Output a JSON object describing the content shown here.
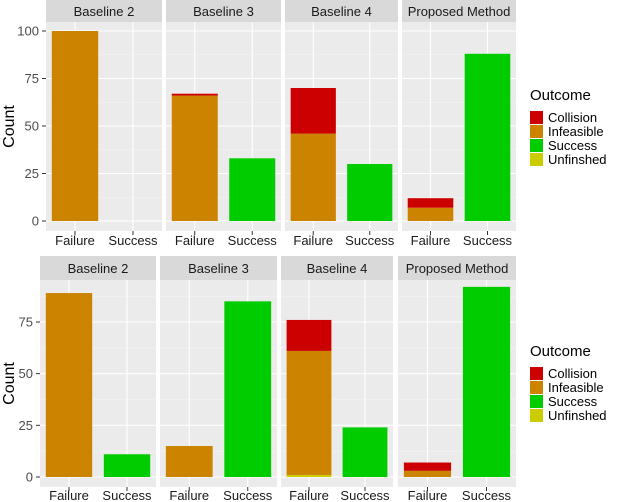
{
  "chart_data": [
    {
      "type": "bar",
      "stacked": true,
      "facet_by": "method",
      "facets": [
        "Baseline 2",
        "Baseline 3",
        "Baseline 4",
        "Proposed Method"
      ],
      "categories": [
        "Failure",
        "Success"
      ],
      "ylabel": "Count",
      "ylim": [
        0,
        105
      ],
      "yticks": [
        0,
        25,
        50,
        75,
        100
      ],
      "legend": {
        "title": "Outcome",
        "position": "right"
      },
      "series": [
        {
          "name": "Collision",
          "color": "#CC0000",
          "values": [
            [
              0,
              0
            ],
            [
              1,
              0
            ],
            [
              24,
              0
            ],
            [
              5,
              0
            ]
          ]
        },
        {
          "name": "Infeasible",
          "color": "#CC8400",
          "values": [
            [
              100,
              0
            ],
            [
              66,
              0
            ],
            [
              46,
              0
            ],
            [
              7,
              0
            ]
          ]
        },
        {
          "name": "Success",
          "color": "#00CC00",
          "values": [
            [
              0,
              0
            ],
            [
              0,
              33
            ],
            [
              0,
              30
            ],
            [
              0,
              88
            ]
          ]
        },
        {
          "name": "Unfinshed",
          "color": "#CCCC00",
          "values": [
            [
              0,
              0
            ],
            [
              0,
              0
            ],
            [
              0,
              0
            ],
            [
              0,
              0
            ]
          ]
        }
      ]
    },
    {
      "type": "bar",
      "stacked": true,
      "facet_by": "method",
      "facets": [
        "Baseline 2",
        "Baseline 3",
        "Baseline 4",
        "Proposed Method"
      ],
      "categories": [
        "Failure",
        "Success"
      ],
      "ylabel": "Count",
      "ylim": [
        0,
        92
      ],
      "yticks": [
        0,
        25,
        50,
        75
      ],
      "legend": {
        "title": "Outcome",
        "position": "right"
      },
      "series": [
        {
          "name": "Collision",
          "color": "#CC0000",
          "values": [
            [
              0,
              0
            ],
            [
              0,
              0
            ],
            [
              15,
              0
            ],
            [
              4,
              0
            ]
          ]
        },
        {
          "name": "Infeasible",
          "color": "#CC8400",
          "values": [
            [
              89,
              0
            ],
            [
              15,
              0
            ],
            [
              60,
              0
            ],
            [
              3,
              0
            ]
          ]
        },
        {
          "name": "Success",
          "color": "#00CC00",
          "values": [
            [
              0,
              11
            ],
            [
              0,
              85
            ],
            [
              0,
              24
            ],
            [
              0,
              92
            ]
          ]
        },
        {
          "name": "Unfinshed",
          "color": "#CCCC00",
          "values": [
            [
              0,
              0
            ],
            [
              0,
              0
            ],
            [
              1,
              0
            ],
            [
              0,
              0
            ]
          ]
        }
      ]
    }
  ]
}
